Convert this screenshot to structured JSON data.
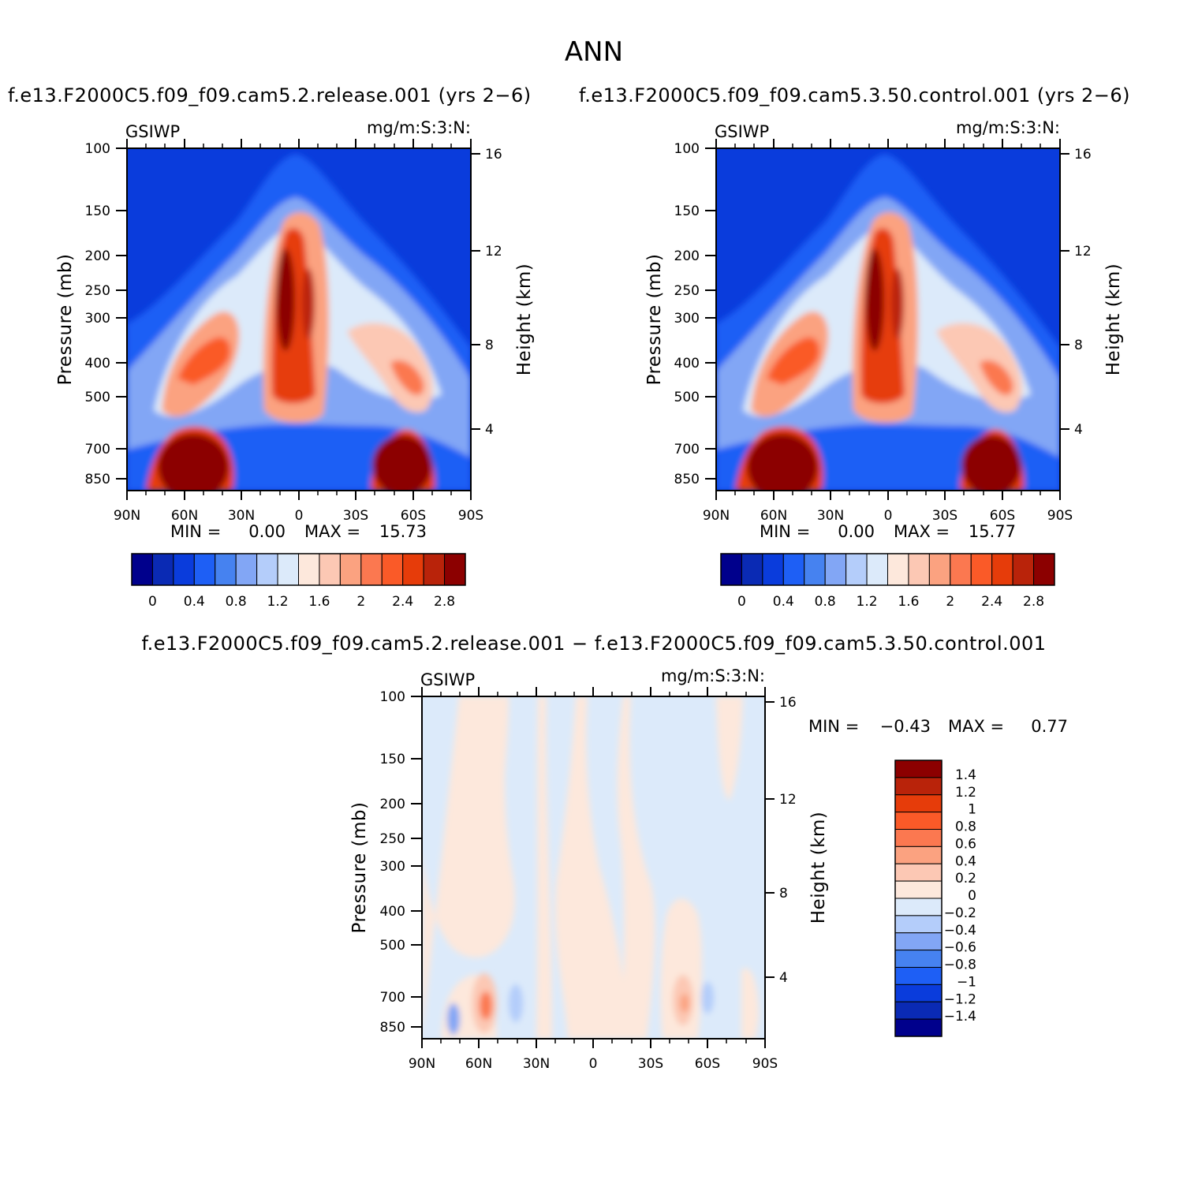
{
  "figure": {
    "title": "ANN"
  },
  "chart_data": [
    {
      "type": "heatmap",
      "title": "f.e13.F2000C5.f09_f09.cam5.2.release.001  (yrs 2−6)",
      "left_label": "GSIWP",
      "right_label": "mg/m:S:3:N:",
      "ylabel": "Pressure (mb)",
      "ylabel_right": "Height (km)",
      "x_ticks": [
        "90N",
        "60N",
        "30N",
        "0",
        "30S",
        "60S",
        "90S"
      ],
      "y_ticks": [
        "100",
        "150",
        "200",
        "250",
        "300",
        "400",
        "500",
        "700",
        "850"
      ],
      "y_ticks_right": [
        "16",
        "12",
        "8",
        "4"
      ],
      "min_label": "MIN =",
      "min_value": "0.00",
      "max_label": "MAX =",
      "max_value": "15.73",
      "colorbar": {
        "orientation": "horizontal",
        "labels": [
          "0",
          "0.4",
          "0.8",
          "1.2",
          "1.6",
          "2",
          "2.4",
          "2.8"
        ],
        "colors": [
          "#00008c",
          "#0a2ab4",
          "#0a3cdc",
          "#1e5ff5",
          "#4682f0",
          "#82a6f5",
          "#b4cdfa",
          "#dceafa",
          "#fde8dc",
          "#fcc8b4",
          "#fba280",
          "#fb7850",
          "#fa5a28",
          "#e63c0a",
          "#b9230a",
          "#8c0000"
        ]
      }
    },
    {
      "type": "heatmap",
      "title": "f.e13.F2000C5.f09_f09.cam5.3.50.control.001  (yrs 2−6)",
      "left_label": "GSIWP",
      "right_label": "mg/m:S:3:N:",
      "ylabel": "Pressure (mb)",
      "ylabel_right": "Height (km)",
      "x_ticks": [
        "90N",
        "60N",
        "30N",
        "0",
        "30S",
        "60S",
        "90S"
      ],
      "y_ticks": [
        "100",
        "150",
        "200",
        "250",
        "300",
        "400",
        "500",
        "700",
        "850"
      ],
      "y_ticks_right": [
        "16",
        "12",
        "8",
        "4"
      ],
      "min_label": "MIN =",
      "min_value": "0.00",
      "max_label": "MAX =",
      "max_value": "15.77",
      "colorbar": {
        "orientation": "horizontal",
        "labels": [
          "0",
          "0.4",
          "0.8",
          "1.2",
          "1.6",
          "2",
          "2.4",
          "2.8"
        ],
        "colors": [
          "#00008c",
          "#0a2ab4",
          "#0a3cdc",
          "#1e5ff5",
          "#4682f0",
          "#82a6f5",
          "#b4cdfa",
          "#dceafa",
          "#fde8dc",
          "#fcc8b4",
          "#fba280",
          "#fb7850",
          "#fa5a28",
          "#e63c0a",
          "#b9230a",
          "#8c0000"
        ]
      }
    },
    {
      "type": "heatmap",
      "title": "f.e13.F2000C5.f09_f09.cam5.2.release.001 − f.e13.F2000C5.f09_f09.cam5.3.50.control.001",
      "left_label": "GSIWP",
      "right_label": "mg/m:S:3:N:",
      "ylabel": "Pressure (mb)",
      "ylabel_right": "Height (km)",
      "x_ticks": [
        "90N",
        "60N",
        "30N",
        "0",
        "30S",
        "60S",
        "90S"
      ],
      "y_ticks": [
        "100",
        "150",
        "200",
        "250",
        "300",
        "400",
        "500",
        "700",
        "850"
      ],
      "y_ticks_right": [
        "16",
        "12",
        "8",
        "4"
      ],
      "min_label": "MIN =",
      "min_value": "−0.43",
      "max_label": "MAX =",
      "max_value": "0.77",
      "colorbar": {
        "orientation": "vertical",
        "labels": [
          "1.4",
          "1.2",
          "1",
          "0.8",
          "0.6",
          "0.4",
          "0.2",
          "0",
          "−0.2",
          "−0.4",
          "−0.6",
          "−0.8",
          "−1",
          "−1.2",
          "−1.4"
        ],
        "colors": [
          "#8c0000",
          "#b9230a",
          "#e63c0a",
          "#fa5a28",
          "#fb7850",
          "#fba280",
          "#fcc8b4",
          "#fde8dc",
          "#dceafa",
          "#b4cdfa",
          "#82a6f5",
          "#4682f0",
          "#1e5ff5",
          "#0a3cdc",
          "#0a2ab4",
          "#00008c"
        ]
      }
    }
  ]
}
